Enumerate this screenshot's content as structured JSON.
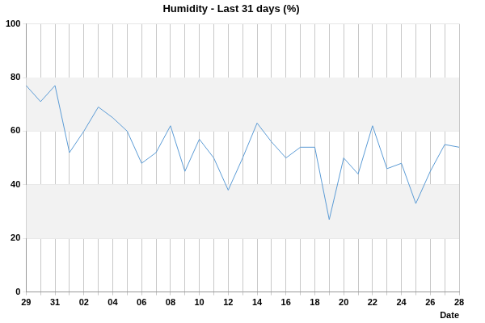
{
  "chart_data": {
    "type": "line",
    "title": "Humidity - Last 31 days (%)",
    "x_label": "Date",
    "categories": [
      "29",
      null,
      "31",
      null,
      "02",
      null,
      "04",
      null,
      "06",
      null,
      "08",
      null,
      "10",
      null,
      "12",
      null,
      "14",
      null,
      "16",
      null,
      "18",
      null,
      "20",
      null,
      "22",
      null,
      "24",
      null,
      "26",
      null,
      "28"
    ],
    "values": [
      77,
      71,
      77,
      52,
      60,
      69,
      65,
      60,
      48,
      52,
      62,
      45,
      57,
      50,
      38,
      50,
      63,
      56,
      50,
      54,
      54,
      27,
      50,
      44,
      62,
      46,
      48,
      33,
      45,
      55,
      54
    ],
    "color": "#5b9bd5",
    "ylim": [
      0,
      100
    ],
    "yticks": [
      0,
      20,
      40,
      60,
      80,
      100
    ],
    "grid": true
  }
}
